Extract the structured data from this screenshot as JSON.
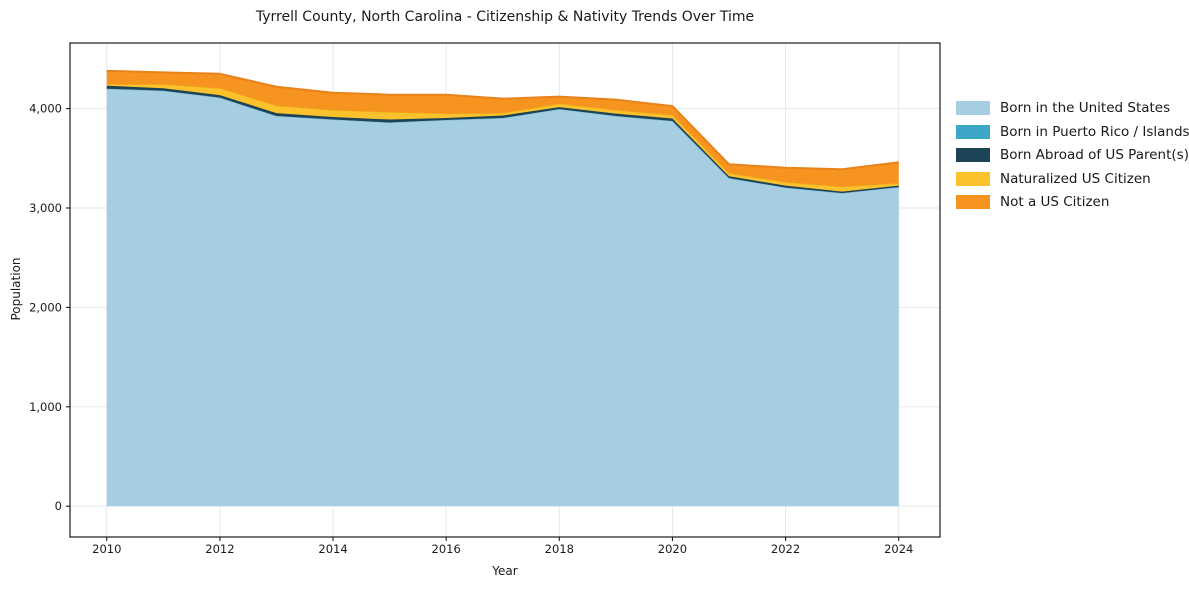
{
  "chart_data": {
    "type": "area",
    "stacked": true,
    "title": "Tyrrell County, North Carolina - Citizenship & Nativity Trends Over Time",
    "xlabel": "Year",
    "ylabel": "Population",
    "x": [
      2010,
      2011,
      2012,
      2013,
      2014,
      2015,
      2016,
      2017,
      2018,
      2019,
      2020,
      2021,
      2022,
      2023,
      2024
    ],
    "series": [
      {
        "key": "born-us",
        "name": "Born in the United States",
        "color": "#a5cee3",
        "edge_color": "#8abfdb",
        "values": [
          4200,
          4180,
          4110,
          3925,
          3890,
          3860,
          3885,
          3905,
          3995,
          3925,
          3875,
          3300,
          3205,
          3150,
          3210
        ]
      },
      {
        "key": "born-pr",
        "name": "Born in Puerto Rico / Islands",
        "color": "#3ba7c4",
        "edge_color": "#3ba7c4",
        "values": [
          0,
          0,
          0,
          0,
          0,
          0,
          0,
          0,
          0,
          0,
          0,
          0,
          0,
          0,
          0
        ]
      },
      {
        "key": "born-abroad",
        "name": "Born Abroad of US Parent(s)",
        "color": "#1d4456",
        "edge_color": "#1d4456",
        "values": [
          30,
          25,
          25,
          30,
          25,
          30,
          20,
          25,
          20,
          25,
          25,
          20,
          20,
          15,
          15
        ]
      },
      {
        "key": "naturalized",
        "name": "Naturalized US Citizen",
        "color": "#fcc22d",
        "edge_color": "#edb11c",
        "values": [
          15,
          40,
          70,
          75,
          70,
          75,
          45,
          25,
          35,
          35,
          35,
          30,
          35,
          50,
          25
        ]
      },
      {
        "key": "not-citizen",
        "name": "Not a US Citizen",
        "color": "#f7941f",
        "edge_color": "#e8821b",
        "values": [
          135,
          120,
          145,
          190,
          175,
          175,
          190,
          145,
          70,
          105,
          90,
          90,
          145,
          175,
          210
        ]
      }
    ],
    "totals": [
      4380,
      4365,
      4350,
      4220,
      4160,
      4140,
      4140,
      4100,
      4120,
      4090,
      4025,
      3440,
      3405,
      3390,
      3460
    ],
    "x_ticks": {
      "values": [
        2010,
        2012,
        2014,
        2016,
        2018,
        2020,
        2022,
        2024
      ],
      "labels": [
        "2010",
        "2012",
        "2014",
        "2016",
        "2018",
        "2020",
        "2022",
        "2024"
      ]
    },
    "y_ticks": {
      "values": [
        0,
        1000,
        2000,
        3000,
        4000
      ],
      "labels": [
        "0",
        "1,000",
        "2,000",
        "3,000",
        "4,000"
      ]
    },
    "xlim": [
      2009.35,
      2024.73
    ],
    "ylim": [
      -310,
      4660
    ],
    "grid": true,
    "legend_position": "right",
    "grid_color": "#e6e6e6",
    "spine_color": "#1a1a1a",
    "background_color": "#ffffff"
  }
}
